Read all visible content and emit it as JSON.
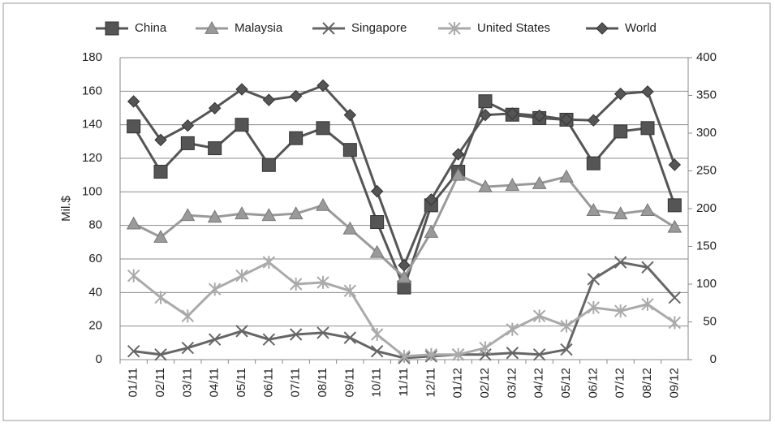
{
  "chart_data": {
    "type": "line",
    "categories": [
      "01/11",
      "02/11",
      "03/11",
      "04/11",
      "05/11",
      "06/11",
      "07/11",
      "08/11",
      "09/11",
      "10/11",
      "11/11",
      "12/11",
      "01/12",
      "02/12",
      "03/12",
      "04/12",
      "05/12",
      "06/12",
      "07/12",
      "08/12",
      "09/12"
    ],
    "y_label": "Mil.$",
    "ylim": [
      0,
      180
    ],
    "yticks": [
      0,
      20,
      40,
      60,
      80,
      100,
      120,
      140,
      160,
      180
    ],
    "y2lim": [
      0,
      400
    ],
    "y2ticks": [
      0,
      50,
      100,
      150,
      200,
      250,
      300,
      350,
      400
    ],
    "grid": true,
    "legend": "top",
    "series": [
      {
        "name": "China",
        "color": "#555555",
        "marker": "square",
        "values": [
          139,
          112,
          129,
          126,
          140,
          116,
          132,
          138,
          125,
          82,
          43,
          92,
          112,
          154,
          146,
          144,
          143,
          117,
          136,
          138,
          92
        ]
      },
      {
        "name": "Malaysia",
        "color": "#9a9a9a",
        "marker": "triangle",
        "values": [
          81,
          73,
          86,
          85,
          87,
          86,
          87,
          92,
          78,
          64,
          49,
          76,
          110,
          103,
          104,
          105,
          109,
          89,
          87,
          89,
          79
        ]
      },
      {
        "name": "Singapore",
        "color": "#666666",
        "marker": "x",
        "values": [
          5,
          3,
          7,
          12,
          17,
          12,
          15,
          16,
          13,
          5,
          1,
          2,
          3,
          3,
          4,
          3,
          6,
          48,
          58,
          55,
          37
        ]
      },
      {
        "name": "United States",
        "color": "#aaaaaa",
        "marker": "star",
        "values": [
          50,
          37,
          26,
          42,
          50,
          58,
          45,
          46,
          41,
          15,
          2,
          3,
          3,
          7,
          18,
          26,
          20,
          31,
          29,
          33,
          22
        ]
      },
      {
        "name": "World",
        "color": "#555555",
        "marker": "diamond",
        "axis": "y2",
        "values": [
          342,
          291,
          310,
          333,
          358,
          344,
          349,
          363,
          324,
          223,
          125,
          212,
          272,
          324,
          326,
          323,
          318,
          317,
          352,
          355,
          258
        ]
      }
    ]
  }
}
